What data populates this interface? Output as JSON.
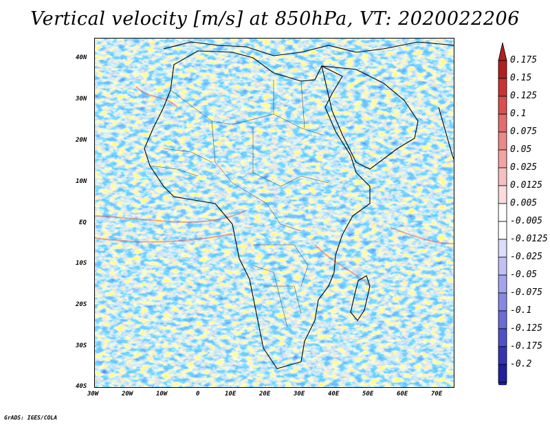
{
  "title": "Vertical velocity [m/s] at 850hPa, VT: 2020022206",
  "credit": "GrADS: IGES/COLA",
  "lat_labels": [
    "40N",
    "30N",
    "20N",
    "10N",
    "EQ",
    "10S",
    "20S",
    "30S",
    "40S"
  ],
  "lon_labels": [
    "30W",
    "20W",
    "10W",
    "0",
    "10E",
    "20E",
    "30E",
    "40E",
    "50E",
    "60E",
    "70E"
  ],
  "colorbar": {
    "labels": [
      "0.175",
      "0.15",
      "0.125",
      "0.1",
      "0.075",
      "0.05",
      "0.025",
      "0.0125",
      "0.005",
      "-0.005",
      "-0.0125",
      "-0.025",
      "-0.05",
      "-0.075",
      "-0.1",
      "-0.125",
      "-0.175",
      "-0.2"
    ],
    "colors": [
      "#b02020",
      "#c83434",
      "#d85050",
      "#e46c6c",
      "#ec8888",
      "#f2a4a4",
      "#f7c0c0",
      "#fbdcdc",
      "#ffffff",
      "#ffffff",
      "#dcdcfb",
      "#c0c0f5",
      "#a4a4ee",
      "#8888e4",
      "#6c6cd8",
      "#5050c8",
      "#3434b4",
      "#2020a0"
    ]
  },
  "colors": {
    "positive": "#e06060",
    "negative": "#6a6ae6",
    "coast": "#000000"
  }
}
